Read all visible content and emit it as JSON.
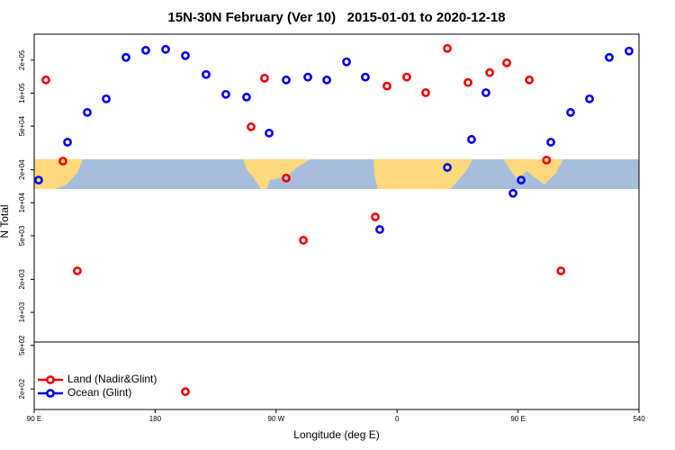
{
  "chart_data": {
    "type": "scatter",
    "title": "15N-30N February (Ver 10)   2015-01-01 to 2020-12-18",
    "xlabel": "Longitude (deg E)",
    "ylabel": "N Total",
    "log_y": true,
    "legend": "bottomleft",
    "xlim": [
      90,
      540
    ],
    "ylim": [
      130,
      345000
    ],
    "xticks": [
      {
        "value": 90,
        "label": "90 E"
      },
      180,
      {
        "value": 270,
        "label": "90 W"
      },
      {
        "value": 360,
        "label": "0"
      },
      {
        "value": 450,
        "label": "90 E"
      },
      540
    ],
    "yticks": [
      {
        "value": 200000,
        "label": "2e+05"
      },
      {
        "value": 100000,
        "label": "1e+05"
      },
      {
        "value": 50000,
        "label": "5e+04"
      },
      {
        "value": 20000,
        "label": "2e+04"
      },
      {
        "value": 10000,
        "label": "1e+04"
      },
      {
        "value": 5000,
        "label": "5e+03"
      },
      {
        "value": 2000,
        "label": "2e+03"
      },
      {
        "value": 1000,
        "label": "1e+03"
      },
      {
        "value": 500,
        "label": "5e+02"
      },
      {
        "value": 200,
        "label": "2e+02"
      }
    ],
    "series": [
      {
        "name": "Land (Nadir&Glint)",
        "color": "#ee0000",
        "x": [
          98.7,
          111.4,
          122.1,
          202.5,
          251.4,
          261.4,
          277.5,
          290.3,
          343.8,
          352.5,
          367.2,
          381.3,
          397.4,
          412.8,
          428.9,
          441.6,
          458.4,
          471.2,
          481.9
        ],
        "values": [
          132000,
          24000,
          2390,
          189,
          49300,
          137000,
          16800,
          4550,
          7430,
          116000,
          140000,
          101000,
          256000,
          125000,
          154000,
          189000,
          132000,
          24500,
          2390
        ]
      },
      {
        "name": "Ocean (Glint)",
        "color": "#0000ee",
        "x": [
          93.3,
          114.8,
          129.5,
          143.6,
          158.3,
          173,
          187.8,
          202.5,
          217.9,
          232.6,
          248,
          264.8,
          277.5,
          293.6,
          307.7,
          322.4,
          336.4,
          347.1,
          397.4,
          415.4,
          426.1,
          446.3,
          452.3,
          474.4,
          489.1,
          503.2,
          517.9,
          532.6
        ],
        "values": [
          16100,
          35700,
          66700,
          88700,
          212000,
          246000,
          251000,
          220000,
          148000,
          97500,
          92000,
          43200,
          132000,
          140000,
          132000,
          193000,
          140000,
          5700,
          21000,
          37800,
          101000,
          12200,
          16100,
          35700,
          66700,
          88700,
          212000,
          242000
        ]
      }
    ]
  }
}
